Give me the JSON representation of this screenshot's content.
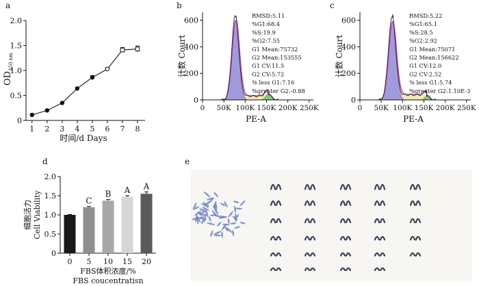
{
  "panels": {
    "a": {
      "letter": "a"
    },
    "b": {
      "letter": "b"
    },
    "c": {
      "letter": "c"
    },
    "d": {
      "letter": "d"
    },
    "e": {
      "letter": "e"
    }
  },
  "flow_ticks": [
    "0",
    "50K",
    "100K",
    "150K",
    "200K",
    "250K"
  ],
  "flow_yticks": [
    "0",
    "200",
    "400",
    "600"
  ],
  "chart_data": [
    {
      "type": "line",
      "panel": "a",
      "title": "",
      "ylabel_main": "OD",
      "ylabel_sub": "450 nm",
      "xlabel": "时间/d Days",
      "x": [
        1,
        2,
        3,
        4,
        5,
        6,
        7,
        8
      ],
      "y": [
        0.11,
        0.2,
        0.35,
        0.64,
        0.86,
        1.03,
        1.41,
        1.43
      ],
      "err": [
        0.02,
        0.02,
        0.02,
        0.02,
        0.04,
        0.03,
        0.05,
        0.06
      ],
      "xlim": [
        0.6,
        8.5
      ],
      "ylim": [
        0,
        2.0
      ],
      "yticks": [
        "0",
        "0.5",
        "1.0",
        "1.5",
        "2.0"
      ],
      "xticks": [
        "1",
        "2",
        "3",
        "4",
        "5",
        "6",
        "7",
        "8"
      ]
    },
    {
      "type": "area",
      "panel": "b",
      "ylabel": "计数 Court",
      "xlabel": "PE-A",
      "xlim": [
        0,
        260000
      ],
      "ylim": [
        0,
        660
      ],
      "stats": [
        "RMSD:5.11",
        "%G1:68.4",
        "%S:19.9",
        "%G2:7.55",
        "G1 Mean:75732",
        "G2 Mean:153555",
        "G1 CV:11.5",
        "G2 CV:5.72",
        "% less G1:7.16",
        "%greater G2:-0.88"
      ]
    },
    {
      "type": "area",
      "panel": "c",
      "ylabel": "计数 Court",
      "xlabel": "PE-A",
      "xlim": [
        0,
        260000
      ],
      "ylim": [
        0,
        660
      ],
      "stats": [
        "RMSD:5.22",
        "%G1:65.1",
        "%S:28.5",
        "%G2:2.92",
        "G1 Mean:75071",
        "G2 Mean:156622",
        "G1 CV:12.0",
        "G2 CV:2.52",
        "% less G1:5.74",
        "%greater G2:1.10E-3"
      ]
    },
    {
      "type": "bar",
      "panel": "d",
      "ylabel_cn": "细胞活力",
      "ylabel_en": "Cell Viability",
      "xlabel_cn": "FBS体积浓度/%",
      "xlabel_en": "FBS coucentratisn",
      "categories": [
        "0",
        "5",
        "10",
        "15",
        "20"
      ],
      "values": [
        1.0,
        1.2,
        1.37,
        1.47,
        1.55
      ],
      "err": [
        0.01,
        0.02,
        0.03,
        0.03,
        0.05
      ],
      "annotations": [
        "",
        "C",
        "B",
        "A",
        "A"
      ],
      "colors": [
        "#1a1a1a",
        "#8f8f8f",
        "#a8a8a8",
        "#d6d6d6",
        "#5a5a5a"
      ],
      "ylim": [
        0,
        2.0
      ],
      "yticks": [
        "0",
        "0.5",
        "1.0",
        "1.5",
        "2.0"
      ]
    }
  ]
}
